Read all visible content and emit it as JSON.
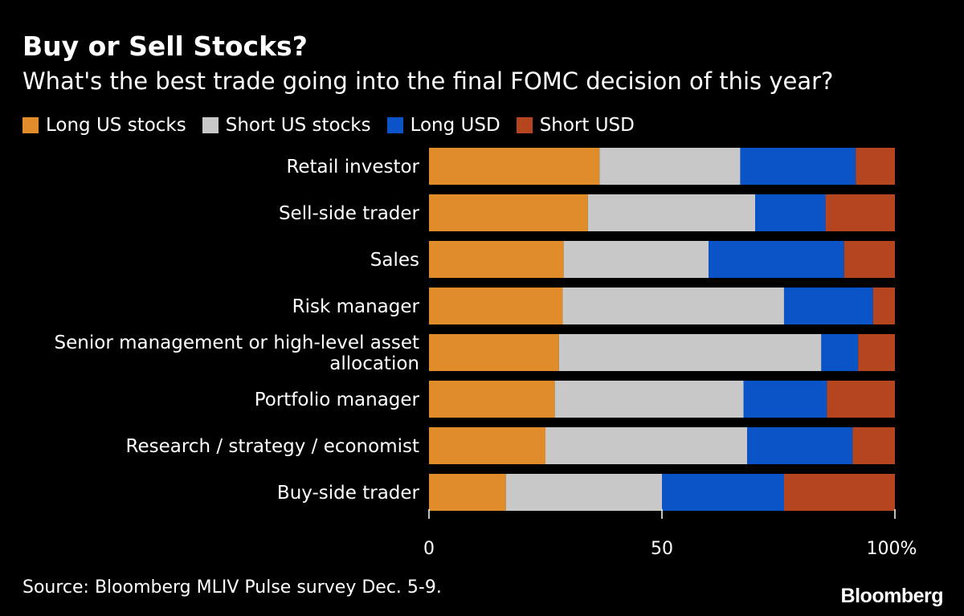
{
  "chart_data": {
    "type": "bar",
    "orientation": "horizontal",
    "stacked": true,
    "title": "Buy or Sell Stocks?",
    "subtitle": "What's the best trade going into the final FOMC decision of this year?",
    "categories": [
      "Retail investor",
      "Sell-side trader",
      "Sales",
      "Risk manager",
      "Senior management or high-level asset allocation",
      "Portfolio manager",
      "Research / strategy / economist",
      "Buy-side trader"
    ],
    "category_lines": [
      [
        "Retail investor"
      ],
      [
        "Sell-side trader"
      ],
      [
        "Sales"
      ],
      [
        "Risk manager"
      ],
      [
        "Senior management or high-level asset",
        "allocation"
      ],
      [
        "Portfolio manager"
      ],
      [
        "Research / strategy / economist"
      ],
      [
        "Buy-side trader"
      ]
    ],
    "series": [
      {
        "name": "Long US stocks",
        "color": "#e08c2a",
        "values": [
          36.6,
          34.1,
          28.9,
          28.7,
          27.9,
          27.0,
          25.0,
          16.5
        ]
      },
      {
        "name": "Short US stocks",
        "color": "#c8c8c8",
        "values": [
          30.2,
          35.9,
          31.1,
          47.5,
          56.3,
          40.5,
          43.3,
          33.5
        ]
      },
      {
        "name": "Long USD",
        "color": "#0a54c8",
        "values": [
          24.8,
          15.1,
          29.1,
          19.1,
          7.9,
          17.9,
          22.6,
          26.2
        ]
      },
      {
        "name": "Short USD",
        "color": "#b5451e",
        "values": [
          8.4,
          14.9,
          10.9,
          4.7,
          7.9,
          14.6,
          9.1,
          23.8
        ]
      }
    ],
    "xlim": [
      0,
      100
    ],
    "xticks": [
      {
        "value": 0,
        "label": "0"
      },
      {
        "value": 50,
        "label": "50"
      },
      {
        "value": 100,
        "label": "100%"
      }
    ],
    "legend_position": "top-left",
    "grid": false
  },
  "source": "Source: Bloomberg MLIV Pulse survey Dec. 5-9.",
  "logo_text": "Bloomberg"
}
